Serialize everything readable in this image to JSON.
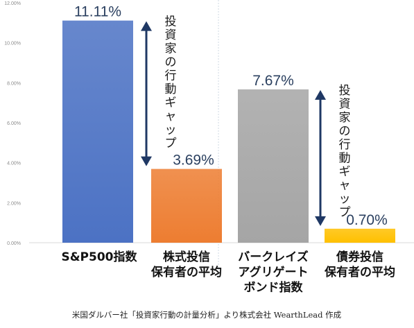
{
  "chart_data": {
    "type": "bar",
    "categories": [
      [
        "S&P500指数"
      ],
      [
        "株式投信",
        "保有者の平均"
      ],
      [
        "バークレイズ",
        "アグリゲート",
        "ボンド指数"
      ],
      [
        "債券投信",
        "保有者の平均"
      ]
    ],
    "values": [
      11.11,
      3.69,
      7.67,
      0.7
    ],
    "value_labels": [
      "11.11%",
      "3.69%",
      "7.67%",
      "0.70%"
    ],
    "colors": [
      "#4c72c4",
      "#ed7d31",
      "#a5a5a5",
      "#ffc000"
    ],
    "ylim": [
      0,
      12
    ],
    "yticks": [
      "0.00%",
      "2.00%",
      "4.00%",
      "6.00%",
      "8.00%",
      "10.00%",
      "12.00%"
    ],
    "grid": false,
    "annotations": [
      {
        "text": "投資家の行動ギャップ",
        "between": [
          0,
          1
        ],
        "color": "#1f3864"
      },
      {
        "text": "投資家の行動ギャップ",
        "between": [
          2,
          3
        ],
        "color": "#1f3864"
      }
    ],
    "footnote": "米国ダルバー社「投資家行動の計量分析」より株式会社 WearthLead 作成"
  }
}
